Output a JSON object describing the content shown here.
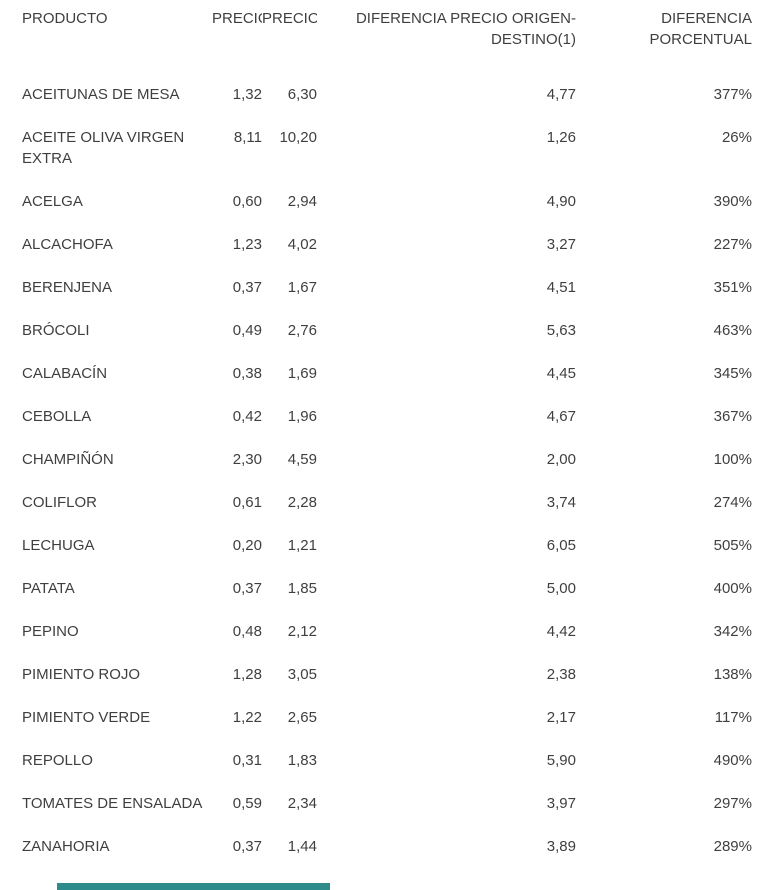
{
  "page": {
    "background": "#ffffff",
    "text_color": "#3f3f3f"
  },
  "table": {
    "columns": [
      {
        "key": "producto",
        "label": "PRODUCTO",
        "align": "left"
      },
      {
        "key": "precio-origen",
        "label": "PRECIO",
        "align": "right"
      },
      {
        "key": "precio-destino",
        "label": "PRECIO",
        "align": "right"
      },
      {
        "key": "diferencia-precio",
        "label": "DIFERENCIA PRECIO ORIGEN-DESTINO(1)",
        "align": "right"
      },
      {
        "key": "diferencia-porcentual",
        "label": "DIFERENCIA PORCENTUAL",
        "align": "right"
      }
    ],
    "rows": [
      [
        "ACEITUNAS DE MESA",
        "1,32",
        "6,30",
        "4,77",
        "377%"
      ],
      [
        "ACEITE OLIVA VIRGEN EXTRA",
        "8,11",
        "10,20",
        "1,26",
        "26%"
      ],
      [
        "ACELGA",
        "0,60",
        "2,94",
        "4,90",
        "390%"
      ],
      [
        "ALCACHOFA",
        "1,23",
        "4,02",
        "3,27",
        "227%"
      ],
      [
        "BERENJENA",
        "0,37",
        "1,67",
        "4,51",
        "351%"
      ],
      [
        "BRÓCOLI",
        "0,49",
        "2,76",
        "5,63",
        "463%"
      ],
      [
        "CALABACÍN",
        "0,38",
        "1,69",
        "4,45",
        "345%"
      ],
      [
        "CEBOLLA",
        "0,42",
        "1,96",
        "4,67",
        "367%"
      ],
      [
        "CHAMPIÑÓN",
        "2,30",
        "4,59",
        "2,00",
        "100%"
      ],
      [
        "COLIFLOR",
        "0,61",
        "2,28",
        "3,74",
        "274%"
      ],
      [
        "LECHUGA",
        "0,20",
        "1,21",
        "6,05",
        "505%"
      ],
      [
        "PATATA",
        "0,37",
        "1,85",
        "5,00",
        "400%"
      ],
      [
        "PEPINO",
        "0,48",
        "2,12",
        "4,42",
        "342%"
      ],
      [
        "PIMIENTO ROJO",
        "1,28",
        "3,05",
        "2,38",
        "138%"
      ],
      [
        "PIMIENTO VERDE",
        "1,22",
        "2,65",
        "2,17",
        "117%"
      ],
      [
        "REPOLLO",
        "0,31",
        "1,83",
        "5,90",
        "490%"
      ],
      [
        "TOMATES DE ENSALADA",
        "0,59",
        "2,34",
        "3,97",
        "297%"
      ],
      [
        "ZANAHORIA",
        "0,37",
        "1,44",
        "3,89",
        "289%"
      ]
    ]
  },
  "footer": {
    "bar_color": "#2e8b8b"
  }
}
